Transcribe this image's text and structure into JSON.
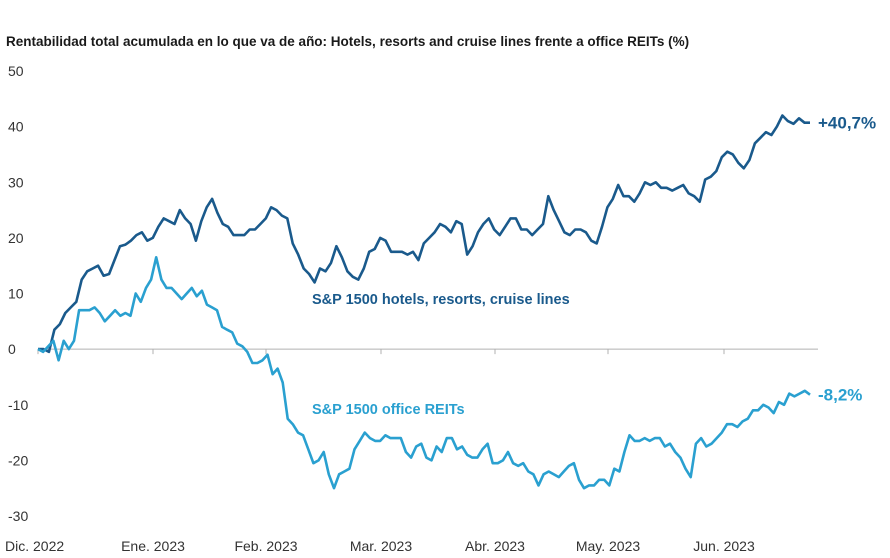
{
  "chart_data": {
    "type": "line",
    "title": "Rentabilidad total acumulada en lo que va de año: Hotels, resorts and cruise lines frente a office REITs (%)",
    "xlabel": "",
    "ylabel": "",
    "ylim": [
      -30,
      50
    ],
    "yticks": [
      "50",
      "40",
      "30",
      "20",
      "10",
      "0",
      "-10",
      "-20",
      "-30"
    ],
    "x_tick_labels": [
      "Dic. 2022",
      "Ene. 2023",
      "Feb. 2023",
      "Mar. 2023",
      "Abr. 2023",
      "May. 2023",
      "Jun. 2023"
    ],
    "grid": false,
    "legend": "inline labels",
    "colors": {
      "hotels": "#1a5a8c",
      "reits": "#2aa0d0",
      "zero_line": "#b0b0b0"
    },
    "series": [
      {
        "name": "S&P 1500 hotels, resorts, cruise lines",
        "end_label": "+40,7%",
        "values": [
          0,
          0,
          -0.5,
          3.5,
          4.5,
          6.5,
          7.5,
          8.5,
          12.5,
          14,
          14.5,
          15,
          13.2,
          13.5,
          16,
          18.5,
          18.8,
          19.5,
          20.5,
          21,
          19.5,
          20,
          22,
          23.5,
          23,
          22.5,
          25,
          23.5,
          22.5,
          19.5,
          23,
          25.5,
          27,
          24.5,
          22.5,
          22,
          20.5,
          20.5,
          20.5,
          21.5,
          21.5,
          22.5,
          23.5,
          25.5,
          25,
          24,
          23.5,
          19,
          17,
          14.5,
          13.5,
          12,
          14.5,
          14,
          15.5,
          18.5,
          16.5,
          14,
          13,
          12.5,
          14.5,
          17.5,
          18,
          20,
          19.5,
          17.5,
          17.5,
          17.5,
          17,
          17.5,
          16,
          19,
          20,
          21,
          22.5,
          22,
          21,
          23,
          22.5,
          17,
          18.5,
          21,
          22.5,
          23.5,
          21.5,
          20.5,
          22,
          23.5,
          23.5,
          21.5,
          21.5,
          20.5,
          21.5,
          22.5,
          27.5,
          25,
          23,
          21,
          20.5,
          21.5,
          21.5,
          21,
          19.5,
          19,
          22,
          25.5,
          27,
          29.5,
          27.5,
          27.5,
          26.5,
          28,
          30,
          29.5,
          30,
          29,
          29,
          28.5,
          29,
          29.5,
          28,
          27.5,
          26.5,
          30.5,
          31,
          32,
          34.5,
          35.5,
          35,
          33.5,
          32.5,
          34,
          37,
          38,
          39,
          38.5,
          40,
          42,
          41,
          40.5,
          41.5,
          40.7,
          40.7
        ],
        "x_start": 0,
        "x_step": 0.0435
      },
      {
        "name": "S&P 1500 office REITs",
        "end_label": "-8,2%",
        "values": [
          0,
          -0.5,
          0.5,
          1.5,
          -2,
          1.5,
          0,
          1.5,
          7,
          7,
          7,
          7.5,
          6.5,
          5,
          6,
          7,
          6,
          6.5,
          6,
          10,
          8.5,
          11,
          12.5,
          16.5,
          12.5,
          11,
          11,
          10,
          9,
          10,
          11,
          9.5,
          10.5,
          8,
          7.5,
          7,
          4,
          3.5,
          3,
          1,
          0.5,
          -0.5,
          -2.5,
          -2.5,
          -2,
          -1,
          -4.5,
          -3.5,
          -6,
          -12.5,
          -13.5,
          -15,
          -15.5,
          -18,
          -20.5,
          -20,
          -18.5,
          -22.5,
          -25,
          -22.5,
          -22,
          -21.5,
          -18,
          -16.5,
          -15,
          -16,
          -16.5,
          -16.5,
          -15.5,
          -16,
          -16,
          -16,
          -18.5,
          -19.5,
          -17.5,
          -17,
          -19.5,
          -20,
          -17.5,
          -18.5,
          -16,
          -16,
          -18,
          -17.5,
          -19,
          -19.5,
          -19.5,
          -18,
          -17,
          -20.5,
          -20.5,
          -20,
          -18.5,
          -20.5,
          -21,
          -20.5,
          -22,
          -22.5,
          -24.5,
          -22.5,
          -22,
          -22.5,
          -23,
          -22,
          -21,
          -20.5,
          -23.5,
          -25,
          -24.5,
          -24.5,
          -23.5,
          -23.5,
          -24.5,
          -21.5,
          -22,
          -18.5,
          -15.5,
          -16.5,
          -16.5,
          -16,
          -16.5,
          -16,
          -16,
          -17.5,
          -17,
          -18.5,
          -19.5,
          -21.5,
          -23,
          -17,
          -16,
          -17.5,
          -17,
          -16,
          -15,
          -13.5,
          -13.5,
          -14,
          -13,
          -12.5,
          -11,
          -11,
          -10,
          -10.5,
          -11.5,
          -9.5,
          -10,
          -8,
          -8.5,
          -8,
          -7.5,
          -8.2
        ],
        "x_start": 0,
        "x_step": 0.0405
      }
    ],
    "x_tick_positions": [
      0,
      1,
      2,
      3,
      4,
      5,
      6
    ]
  }
}
